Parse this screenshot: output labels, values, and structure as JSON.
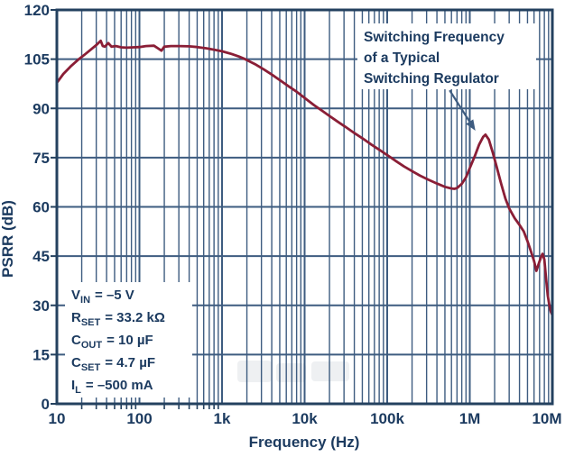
{
  "chart_data": {
    "type": "line",
    "title": "",
    "xlabel": "Frequency (Hz)",
    "ylabel": "PSRR (dB)",
    "x_scale": "log",
    "x_range": [
      10,
      10000000
    ],
    "y_range": [
      0,
      120
    ],
    "y_ticks": [
      0,
      15,
      30,
      45,
      60,
      75,
      90,
      105,
      120
    ],
    "x_tick_labels": [
      "10",
      "100",
      "1k",
      "10k",
      "100k",
      "1M",
      "10M"
    ],
    "grid": "log minor and major verticals, 15 dB horizontals",
    "legend": "none",
    "series": [
      {
        "name": "PSRR",
        "points": [
          [
            10,
            97.8
          ],
          [
            12,
            100.5
          ],
          [
            15,
            103.0
          ],
          [
            18,
            104.8
          ],
          [
            22,
            106.5
          ],
          [
            26,
            108.0
          ],
          [
            30,
            109.3
          ],
          [
            34,
            110.6
          ],
          [
            36,
            109.0
          ],
          [
            38,
            108.8
          ],
          [
            42,
            109.9
          ],
          [
            46,
            108.8
          ],
          [
            52,
            109.0
          ],
          [
            60,
            108.6
          ],
          [
            70,
            108.5
          ],
          [
            85,
            108.6
          ],
          [
            100,
            108.7
          ],
          [
            120,
            109.0
          ],
          [
            150,
            109.1
          ],
          [
            170,
            108.2
          ],
          [
            185,
            107.6
          ],
          [
            200,
            108.8
          ],
          [
            240,
            109.0
          ],
          [
            300,
            109.0
          ],
          [
            400,
            108.9
          ],
          [
            500,
            108.7
          ],
          [
            650,
            108.3
          ],
          [
            800,
            107.9
          ],
          [
            1000,
            107.4
          ],
          [
            1300,
            106.6
          ],
          [
            1600,
            105.8
          ],
          [
            1900,
            105.0
          ],
          [
            2500,
            103.5
          ],
          [
            3200,
            101.9
          ],
          [
            4000,
            100.3
          ],
          [
            5000,
            98.6
          ],
          [
            6500,
            96.6
          ],
          [
            8000,
            95.1
          ],
          [
            10000,
            93.2
          ],
          [
            13000,
            91.0
          ],
          [
            16000,
            89.4
          ],
          [
            20000,
            87.7
          ],
          [
            25000,
            86.0
          ],
          [
            32000,
            84.2
          ],
          [
            40000,
            82.5
          ],
          [
            50000,
            80.9
          ],
          [
            65000,
            78.9
          ],
          [
            80000,
            77.4
          ],
          [
            100000,
            75.8
          ],
          [
            130000,
            73.8
          ],
          [
            160000,
            72.3
          ],
          [
            200000,
            70.9
          ],
          [
            250000,
            69.5
          ],
          [
            320000,
            68.2
          ],
          [
            400000,
            67.1
          ],
          [
            500000,
            66.1
          ],
          [
            600000,
            65.6
          ],
          [
            650000,
            65.5
          ],
          [
            700000,
            65.7
          ],
          [
            800000,
            67.0
          ],
          [
            900000,
            69.0
          ],
          [
            1000000,
            71.8
          ],
          [
            1150000,
            75.5
          ],
          [
            1300000,
            79.0
          ],
          [
            1450000,
            81.3
          ],
          [
            1550000,
            82.0
          ],
          [
            1700000,
            80.5
          ],
          [
            1900000,
            76.5
          ],
          [
            2100000,
            72.5
          ],
          [
            2400000,
            67.0
          ],
          [
            2700000,
            62.5
          ],
          [
            3000000,
            59.5
          ],
          [
            3500000,
            56.5
          ],
          [
            4000000,
            54.5
          ],
          [
            4500000,
            52.5
          ],
          [
            5000000,
            49.5
          ],
          [
            5500000,
            46.5
          ],
          [
            6000000,
            43.5
          ],
          [
            6400000,
            40.5
          ],
          [
            6800000,
            42.5
          ],
          [
            7300000,
            44.8
          ],
          [
            7600000,
            45.7
          ],
          [
            8000000,
            44.0
          ],
          [
            8400000,
            38.0
          ],
          [
            8800000,
            33.0
          ],
          [
            9200000,
            30.0
          ],
          [
            9600000,
            28.0
          ],
          [
            10000000,
            27.0
          ]
        ]
      }
    ],
    "annotation": {
      "lines": [
        "Switching Frequency",
        "of a Typical",
        "Switching Regulator"
      ],
      "arrow_from": [
        570000,
        95.5
      ],
      "arrow_to": [
        1170000,
        83.2
      ]
    },
    "conditions": [
      {
        "base": "V",
        "sub": "IN",
        "rest": "= –5 V"
      },
      {
        "base": "R",
        "sub": "SET",
        "rest": "= 33.2 kΩ"
      },
      {
        "base": "C",
        "sub": "OUT",
        "rest": "= 10 µF"
      },
      {
        "base": "C",
        "sub": "SET",
        "rest": "= 4.7 µF"
      },
      {
        "base": "I",
        "sub": "L",
        "rest": "= –500 mA"
      }
    ]
  },
  "colors": {
    "curve": "#8a1e36",
    "grid": "#3e5c80",
    "axis": "#24415f",
    "text": "#1b3a5f",
    "background": "#ffffff"
  }
}
